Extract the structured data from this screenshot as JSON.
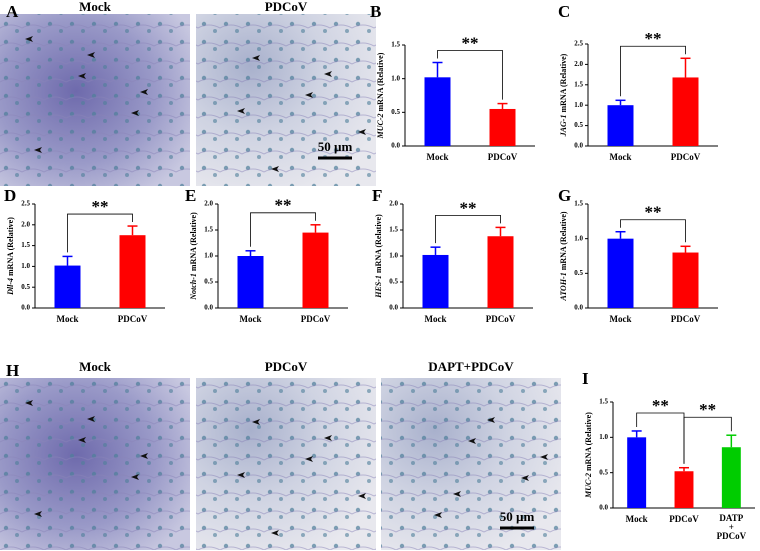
{
  "images": [
    {
      "panel": "A",
      "labels": [
        "Mock",
        "PDCoV"
      ],
      "scale": "50 µm"
    },
    {
      "panel": "H",
      "labels": [
        "Mock",
        "PDCoV",
        "DAPT+PDCoV"
      ],
      "scale": "50 µm"
    }
  ],
  "chart_data": [
    {
      "type": "bar",
      "panel": "B",
      "ylabel": "MUC-2 mRNA (Relative)",
      "categories": [
        "Mock",
        "PDCoV"
      ],
      "values": [
        1.02,
        0.55
      ],
      "errors": [
        0.22,
        0.08
      ],
      "colors": [
        "#0000ff",
        "#ff0000"
      ],
      "ylim": [
        0,
        1.5
      ],
      "yticks": [
        {
          "value": 0,
          "label": "0.0"
        },
        {
          "value": 0.5,
          "label": "0.5"
        },
        {
          "value": 1,
          "label": "1.0"
        },
        {
          "value": 1.5,
          "label": "1.5"
        }
      ],
      "annotations": [
        {
          "text": "**",
          "from": 0,
          "to": 1
        }
      ]
    },
    {
      "type": "bar",
      "panel": "C",
      "ylabel": "JAG-1 mRNA (Relative)",
      "categories": [
        "Mock",
        "PDCoV"
      ],
      "values": [
        1.0,
        1.68
      ],
      "errors": [
        0.12,
        0.47
      ],
      "colors": [
        "#0000ff",
        "#ff0000"
      ],
      "ylim": [
        0,
        2.5
      ],
      "yticks": [
        {
          "value": 0,
          "label": "0.0"
        },
        {
          "value": 0.5,
          "label": "0.5"
        },
        {
          "value": 1,
          "label": "1.0"
        },
        {
          "value": 1.5,
          "label": "1.5"
        },
        {
          "value": 2,
          "label": "2.0"
        },
        {
          "value": 2.5,
          "label": "2.5"
        }
      ],
      "annotations": [
        {
          "text": "**",
          "from": 0,
          "to": 1
        }
      ]
    },
    {
      "type": "bar",
      "panel": "D",
      "ylabel": "Dll-4 mRNA (Relative)",
      "categories": [
        "Mock",
        "PDCoV"
      ],
      "values": [
        1.02,
        1.75
      ],
      "errors": [
        0.22,
        0.22
      ],
      "colors": [
        "#0000ff",
        "#ff0000"
      ],
      "ylim": [
        0,
        2.5
      ],
      "yticks": [
        {
          "value": 0,
          "label": "0.0"
        },
        {
          "value": 0.5,
          "label": "0.5"
        },
        {
          "value": 1,
          "label": "1.0"
        },
        {
          "value": 1.5,
          "label": "1.5"
        },
        {
          "value": 2,
          "label": "2.0"
        },
        {
          "value": 2.5,
          "label": "2.5"
        }
      ],
      "annotations": [
        {
          "text": "**",
          "from": 0,
          "to": 1
        }
      ]
    },
    {
      "type": "bar",
      "panel": "E",
      "ylabel": "Notch-1 mRNA (Relative)",
      "categories": [
        "Mock",
        "PDCoV"
      ],
      "values": [
        1.0,
        1.45
      ],
      "errors": [
        0.1,
        0.15
      ],
      "colors": [
        "#0000ff",
        "#ff0000"
      ],
      "ylim": [
        0,
        2
      ],
      "yticks": [
        {
          "value": 0,
          "label": "0.0"
        },
        {
          "value": 0.5,
          "label": "0.5"
        },
        {
          "value": 1,
          "label": "1.0"
        },
        {
          "value": 1.5,
          "label": "1.5"
        },
        {
          "value": 2,
          "label": "2.0"
        }
      ],
      "annotations": [
        {
          "text": "**",
          "from": 0,
          "to": 1
        }
      ]
    },
    {
      "type": "bar",
      "panel": "F",
      "ylabel": "HES-1 mRNA (Relative)",
      "categories": [
        "Mock",
        "PDCoV"
      ],
      "values": [
        1.02,
        1.38
      ],
      "errors": [
        0.15,
        0.17
      ],
      "colors": [
        "#0000ff",
        "#ff0000"
      ],
      "ylim": [
        0,
        2
      ],
      "yticks": [
        {
          "value": 0,
          "label": "0.0"
        },
        {
          "value": 0.5,
          "label": "0.5"
        },
        {
          "value": 1,
          "label": "1.0"
        },
        {
          "value": 1.5,
          "label": "1.5"
        },
        {
          "value": 2,
          "label": "2.0"
        }
      ],
      "annotations": [
        {
          "text": "**",
          "from": 0,
          "to": 1
        }
      ]
    },
    {
      "type": "bar",
      "panel": "G",
      "ylabel": "ATOH-1 mRNA (Relative)",
      "categories": [
        "Mock",
        "PDCoV"
      ],
      "values": [
        1.0,
        0.8
      ],
      "errors": [
        0.1,
        0.09
      ],
      "colors": [
        "#0000ff",
        "#ff0000"
      ],
      "ylim": [
        0,
        1.5
      ],
      "yticks": [
        {
          "value": 0,
          "label": "0.0"
        },
        {
          "value": 0.5,
          "label": "0.5"
        },
        {
          "value": 1,
          "label": "1.0"
        },
        {
          "value": 1.5,
          "label": "1.5"
        }
      ],
      "annotations": [
        {
          "text": "**",
          "from": 0,
          "to": 1
        }
      ]
    },
    {
      "type": "bar",
      "panel": "I",
      "ylabel": "MUC-2 mRNA (Relative)",
      "categories": [
        "Mock",
        "PDCoV",
        "DATP + PDCoV"
      ],
      "values": [
        1.0,
        0.52,
        0.86
      ],
      "errors": [
        0.09,
        0.05,
        0.17
      ],
      "colors": [
        "#0000ff",
        "#ff0000",
        "#00cc00"
      ],
      "ylim": [
        0,
        1.5
      ],
      "yticks": [
        {
          "value": 0,
          "label": "0.0"
        },
        {
          "value": 0.5,
          "label": "0.5"
        },
        {
          "value": 1,
          "label": "1.0"
        },
        {
          "value": 1.5,
          "label": "1.5"
        }
      ],
      "annotations": [
        {
          "text": "**",
          "from": 0,
          "to": 1
        },
        {
          "text": "**",
          "from": 1,
          "to": 2
        }
      ]
    }
  ]
}
